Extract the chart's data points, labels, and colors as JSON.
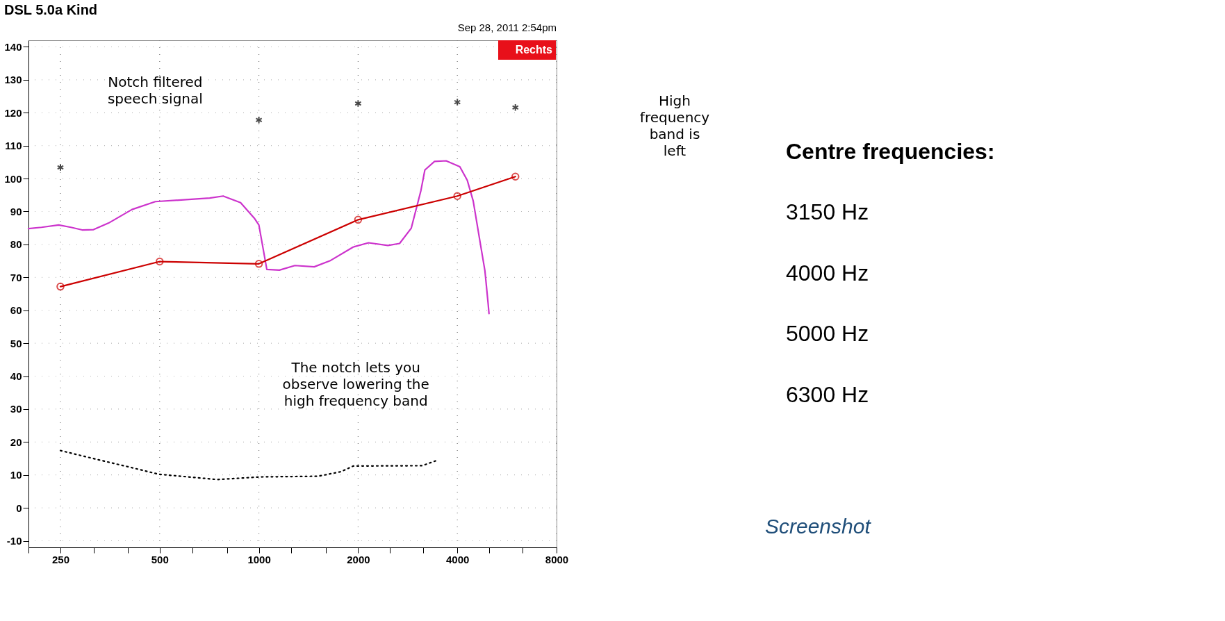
{
  "chart_data": {
    "type": "line",
    "title": "DSL 5.0a Kind",
    "xlim": [
      200,
      8000
    ],
    "xticks": [
      {
        "value": 200,
        "label": null
      },
      250,
      {
        "value": 315,
        "label": null
      },
      {
        "value": 400,
        "label": null
      },
      500,
      {
        "value": 630,
        "label": null
      },
      {
        "value": 800,
        "label": null
      },
      1000,
      {
        "value": 1250,
        "label": null
      },
      {
        "value": 1600,
        "label": null
      },
      2000,
      {
        "value": 2500,
        "label": null
      },
      {
        "value": 3150,
        "label": null
      },
      4000,
      {
        "value": 5000,
        "label": null
      },
      {
        "value": 6300,
        "label": null
      },
      8000
    ],
    "ylim": [
      -12,
      142
    ],
    "yticks": [
      -10,
      0,
      10,
      20,
      30,
      40,
      50,
      60,
      70,
      80,
      90,
      100,
      110,
      120,
      130,
      140
    ],
    "log": "x",
    "grid": true,
    "series": [
      {
        "type": "line",
        "color": "#cc33cc",
        "marker": "none",
        "line_style": "solid",
        "x": [
          200,
          219,
          247,
          269,
          291,
          315,
          350,
          412,
          485,
          602,
          709,
          779,
          880,
          968,
          1000,
          1057,
          1154,
          1286,
          1472,
          1641,
          1931,
          2151,
          2462,
          2672,
          2898,
          3102,
          3188,
          3411,
          3698,
          4070,
          4287,
          4469,
          4720,
          4850,
          4960,
          4990
        ],
        "values": [
          84.8,
          85.2,
          85.9,
          85.2,
          84.4,
          84.5,
          86.5,
          90.6,
          93.0,
          93.6,
          94.1,
          94.7,
          92.7,
          88.0,
          85.9,
          72.4,
          72.2,
          73.6,
          73.2,
          75.0,
          79.2,
          80.5,
          79.7,
          80.3,
          84.9,
          96.4,
          102.6,
          105.2,
          105.4,
          103.6,
          99.5,
          93.2,
          79,
          72,
          62,
          59
        ]
      },
      {
        "type": "line",
        "color": "#cc0000",
        "marker": "circle",
        "line_style": "solid",
        "x": [
          250,
          500,
          1000,
          2000,
          4000,
          6000
        ],
        "values": [
          67.2,
          74.8,
          74.1,
          87.5,
          94.7,
          100.6
        ]
      },
      {
        "type": "scatter",
        "color": "#000000",
        "marker": "cross",
        "x": [
          250,
          1000,
          2000,
          4000,
          6000
        ],
        "values": [
          103.4,
          117.8,
          122.8,
          123.2,
          121.6
        ]
      },
      {
        "type": "line",
        "color": "#000000",
        "marker": "none",
        "line_style": "dotted",
        "x": [
          250,
          323,
          412,
          497,
          748,
          1013,
          1512,
          1777,
          1931,
          3127,
          3490
        ],
        "values": [
          17.4,
          14.7,
          12.2,
          10.2,
          8.6,
          9.4,
          9.6,
          11.0,
          12.7,
          12.8,
          14.5
        ]
      }
    ],
    "annotations": [
      "Sep 28, 2011 2:54pm",
      "Rechts",
      "Notch filtered speech signal",
      "High frequency band is left",
      "The notch lets you observe lowering the high frequency band",
      "Centre frequencies:",
      "3150 Hz",
      "4000 Hz",
      "5000 Hz",
      "6300 Hz",
      "Screenshot"
    ]
  }
}
